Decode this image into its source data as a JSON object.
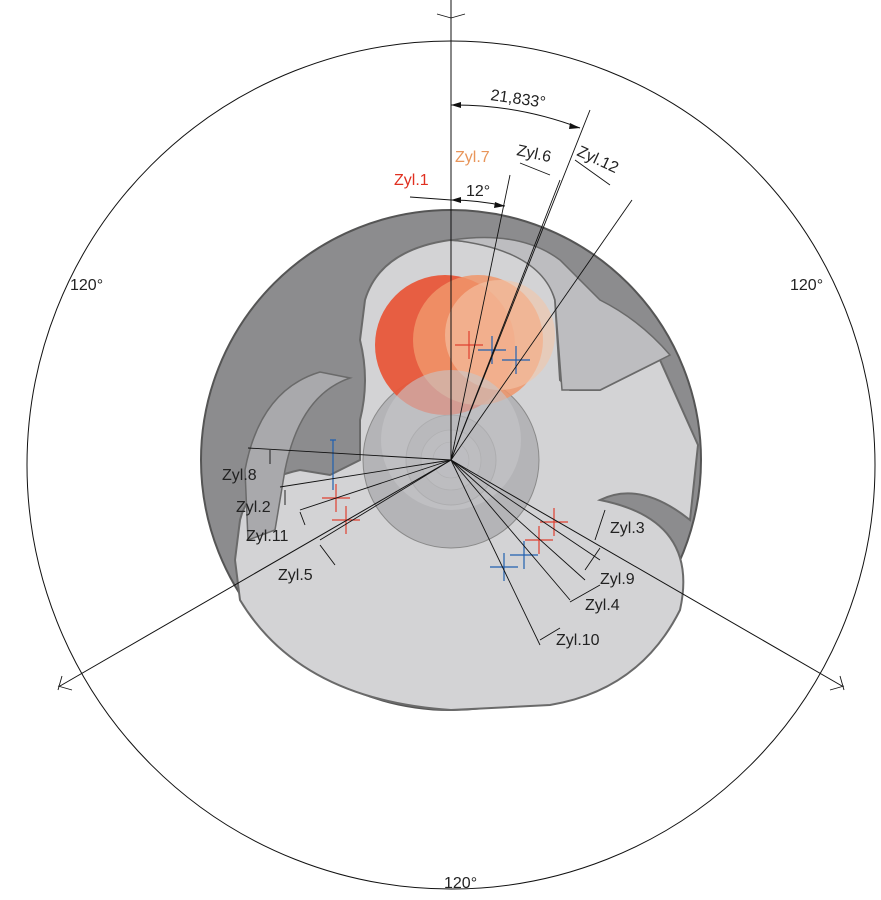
{
  "angles": {
    "sector_top_left": "120°",
    "sector_top_right": "120°",
    "sector_bottom": "120°",
    "offset_zyl6": "21,833°",
    "offset_zyl7": "12°"
  },
  "cylinders": {
    "zyl1": "Zyl.1",
    "zyl2": "Zyl.2",
    "zyl3": "Zyl.3",
    "zyl4": "Zyl.4",
    "zyl5": "Zyl.5",
    "zyl6": "Zyl.6",
    "zyl7": "Zyl.7",
    "zyl8": "Zyl.8",
    "zyl9": "Zyl.9",
    "zyl10": "Zyl.10",
    "zyl11": "Zyl.11",
    "zyl12": "Zyl.12"
  },
  "colors": {
    "zyl1_red": "#e03020",
    "zyl7_orange": "#e8955a",
    "body_gray": "#8c8c8e",
    "face_gray": "#d3d3d5",
    "marker_blue": "#2060b0",
    "marker_red": "#e04030"
  }
}
